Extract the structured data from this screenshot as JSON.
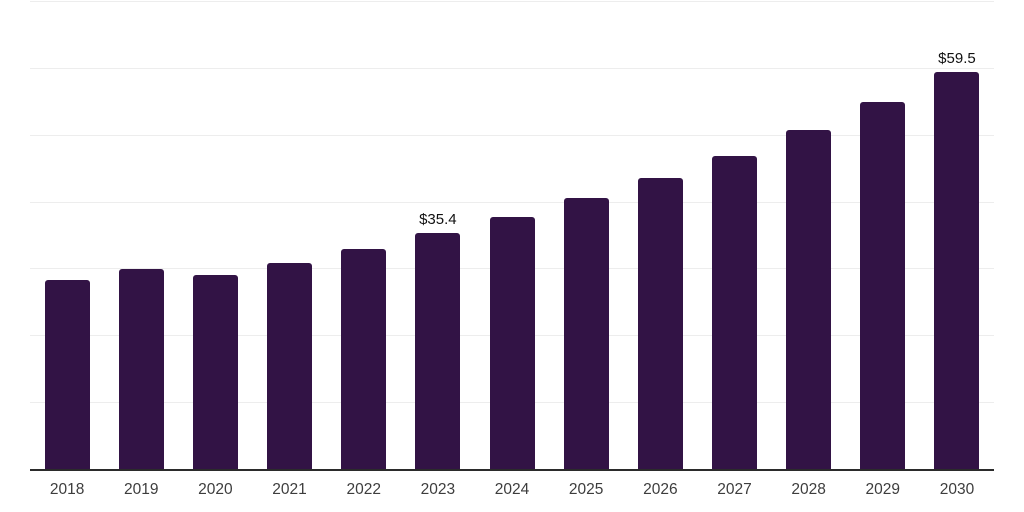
{
  "chart_data": {
    "type": "bar",
    "title": "",
    "xlabel": "",
    "ylabel": "",
    "categories": [
      "2018",
      "2019",
      "2020",
      "2021",
      "2022",
      "2023",
      "2024",
      "2025",
      "2026",
      "2027",
      "2028",
      "2029",
      "2030"
    ],
    "values": [
      28.4,
      30.0,
      29.2,
      31.0,
      33.1,
      35.4,
      37.9,
      40.7,
      43.7,
      47.0,
      50.8,
      55.1,
      59.5
    ],
    "bar_labels": [
      "",
      "",
      "",
      "",
      "",
      "$35.4",
      "",
      "",
      "",
      "",
      "",
      "",
      "$59.5"
    ],
    "ylim": [
      0,
      70
    ],
    "grid_step": 10,
    "grid": true,
    "legend_position": "none",
    "colors": {
      "bar": "#321345",
      "gridline": "#ededed",
      "axis_line": "#2b2b2b",
      "tick_label": "#3d3d3d",
      "value_label": "#111111",
      "background": "#ffffff"
    }
  }
}
